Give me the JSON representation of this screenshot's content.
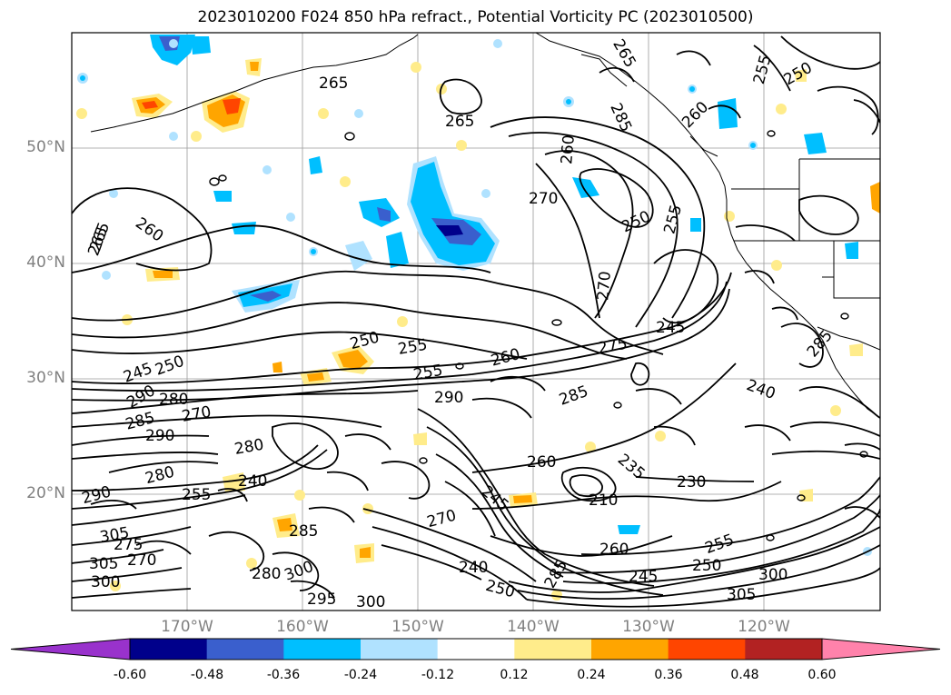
{
  "title": "2023010200 F024 850 hPa refract., Potential Vorticity PC (2023010500)",
  "map": {
    "lat_labels": [
      "50°N",
      "40°N",
      "30°N",
      "20°N"
    ],
    "lon_labels": [
      "170°W",
      "160°W",
      "150°W",
      "140°W",
      "130°W",
      "120°W"
    ],
    "contour_labels": [
      "265",
      "265",
      "265",
      "255",
      "250",
      "260",
      "285",
      "260",
      "270",
      "250",
      "255",
      "260",
      "265",
      "270",
      "245",
      "255",
      "250",
      "275",
      "260",
      "250",
      "245",
      "255",
      "285",
      "290",
      "280",
      "270",
      "290",
      "285",
      "290",
      "280",
      "240",
      "235",
      "260",
      "240",
      "265",
      "245",
      "255",
      "230",
      "210",
      "305",
      "275",
      "280",
      "285",
      "300",
      "270",
      "270",
      "240",
      "250",
      "260",
      "285",
      "255",
      "280",
      "290",
      "295",
      "300",
      "245",
      "300",
      "250",
      "305",
      "300",
      "305",
      "285"
    ]
  },
  "colorbar": {
    "ticks": [
      "-0.60",
      "-0.48",
      "-0.36",
      "-0.24",
      "-0.12",
      "0.12",
      "0.24",
      "0.36",
      "0.48",
      "0.60"
    ],
    "colors": [
      "#9932cc",
      "#00008b",
      "#3a5fcd",
      "#00bfff",
      "#b0e2ff",
      "#ffffff",
      "#ffec8b",
      "#ffa500",
      "#ff4500",
      "#b22222",
      "#ff82ab"
    ]
  }
}
